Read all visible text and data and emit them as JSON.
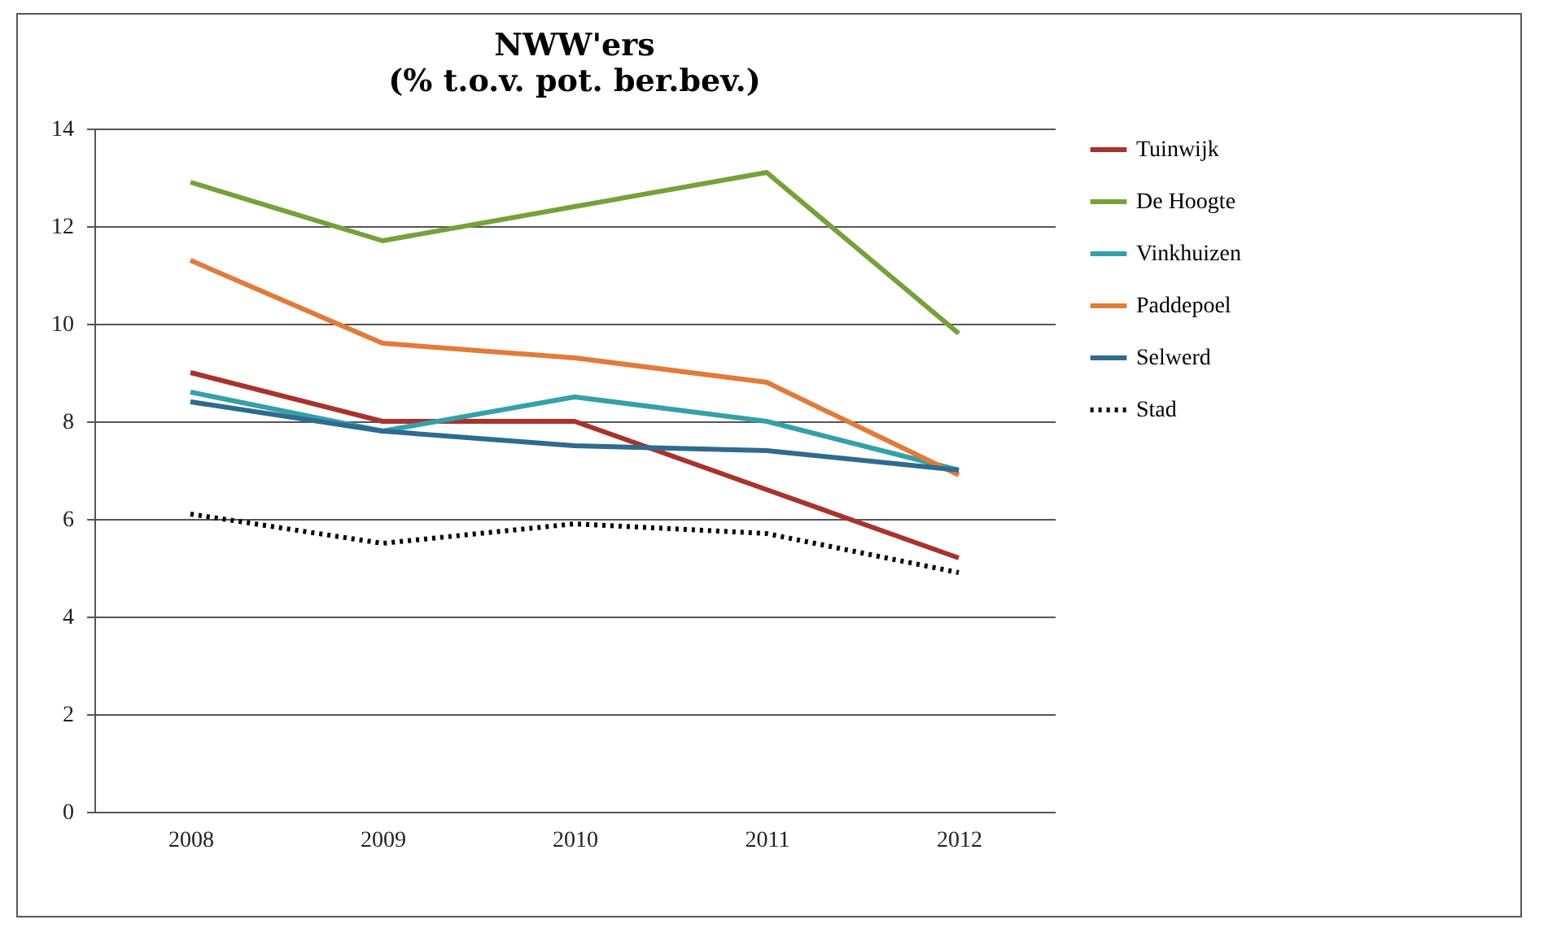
{
  "chart_data": {
    "type": "line",
    "title": "NWW'ers",
    "subtitle": "(% t.o.v. pot. ber.bev.)",
    "categories": [
      "2008",
      "2009",
      "2010",
      "2011",
      "2012"
    ],
    "series": [
      {
        "name": "Tuinwijk",
        "color": "#a8322d",
        "line_style": "solid",
        "values": [
          9.0,
          8.0,
          8.0,
          6.6,
          5.2
        ]
      },
      {
        "name": "De Hoogte",
        "color": "#77a03a",
        "line_style": "solid",
        "values": [
          12.9,
          11.7,
          12.4,
          13.1,
          9.8
        ]
      },
      {
        "name": "Vinkhuizen",
        "color": "#35a0a8",
        "line_style": "solid",
        "values": [
          8.6,
          7.8,
          8.5,
          8.0,
          7.0
        ]
      },
      {
        "name": "Paddepoel",
        "color": "#e07b39",
        "line_style": "solid",
        "values": [
          11.3,
          9.6,
          9.3,
          8.8,
          6.9
        ]
      },
      {
        "name": "Selwerd",
        "color": "#2e6b8f",
        "line_style": "solid",
        "values": [
          8.4,
          7.8,
          7.5,
          7.4,
          7.0
        ]
      },
      {
        "name": "Stad",
        "color": "#000000",
        "line_style": "dotted",
        "values": [
          6.1,
          5.5,
          5.9,
          5.7,
          4.9
        ]
      }
    ],
    "ylim": [
      0,
      14
    ],
    "yticks": [
      0,
      2,
      4,
      6,
      8,
      10,
      12,
      14
    ],
    "grid": "y",
    "legend": "right",
    "marker": "none"
  }
}
